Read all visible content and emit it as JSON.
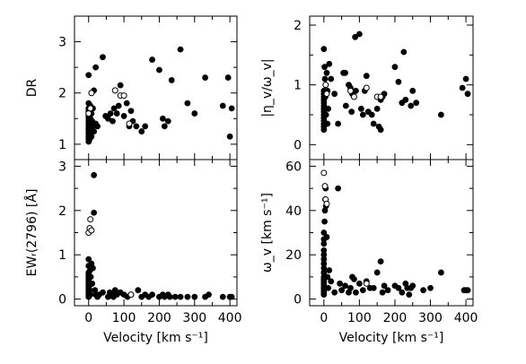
{
  "chart_data": [
    {
      "type": "scatter",
      "panel": "top-left",
      "xlabel": "",
      "ylabel": "DR",
      "xlim": [
        -40,
        420
      ],
      "ylim": [
        0.7,
        3.5
      ],
      "xticks": [
        0,
        100,
        200,
        300,
        400
      ],
      "xticklabels_shown": false,
      "yticks": [
        1,
        2,
        3
      ],
      "yticklabels": [
        "1",
        "2",
        "3"
      ],
      "series": [
        {
          "marker": "filled",
          "x": [
            0,
            0,
            0,
            0,
            0,
            0,
            0,
            0,
            0,
            0,
            0,
            0,
            0,
            0,
            0,
            0,
            3,
            3,
            5,
            5,
            8,
            8,
            10,
            12,
            12,
            15,
            15,
            20,
            20,
            25,
            40,
            48,
            55,
            62,
            68,
            72,
            80,
            85,
            90,
            100,
            108,
            115,
            120,
            125,
            135,
            150,
            160,
            180,
            200,
            210,
            215,
            225,
            235,
            260,
            280,
            300,
            330,
            380,
            395,
            400,
            405
          ],
          "y": [
            1.05,
            1.1,
            1.15,
            1.2,
            1.25,
            1.3,
            1.35,
            1.4,
            1.45,
            1.5,
            1.55,
            1.6,
            1.65,
            1.7,
            1.8,
            2.35,
            1.1,
            1.3,
            1.5,
            1.75,
            1.15,
            1.6,
            1.45,
            1.35,
            1.7,
            1.25,
            2.05,
            1.4,
            2.5,
            1.35,
            2.7,
            1.55,
            1.5,
            1.6,
            1.45,
            1.7,
            1.6,
            1.75,
            2.15,
            1.55,
            1.8,
            1.35,
            1.65,
            1.45,
            1.35,
            1.25,
            1.35,
            2.65,
            2.45,
            1.5,
            1.35,
            1.45,
            2.25,
            2.85,
            1.8,
            1.6,
            2.3,
            1.75,
            2.3,
            1.15,
            1.7
          ]
        },
        {
          "marker": "open",
          "x": [
            0,
            5,
            8,
            75,
            90,
            100,
            115
          ],
          "y": [
            1.6,
            1.7,
            2.0,
            2.05,
            1.95,
            1.95,
            1.4
          ]
        }
      ]
    },
    {
      "type": "scatter",
      "panel": "top-right",
      "xlabel": "",
      "ylabel": "|η_v/ω_v|",
      "xlim": [
        -40,
        420
      ],
      "ylim": [
        -0.25,
        2.15
      ],
      "xticks": [
        0,
        100,
        200,
        300,
        400
      ],
      "xticklabels_shown": false,
      "yticks": [
        0,
        1,
        2
      ],
      "yticklabels": [
        "0",
        "1",
        "2"
      ],
      "series": [
        {
          "marker": "filled",
          "x": [
            0,
            0,
            0,
            0,
            0,
            0,
            0,
            0,
            0,
            0,
            0,
            0,
            0,
            0,
            0,
            2,
            3,
            4,
            5,
            6,
            8,
            10,
            10,
            12,
            15,
            20,
            30,
            40,
            55,
            60,
            62,
            70,
            75,
            78,
            80,
            88,
            90,
            100,
            105,
            110,
            115,
            120,
            125,
            135,
            140,
            150,
            155,
            160,
            160,
            165,
            170,
            200,
            210,
            220,
            225,
            230,
            245,
            250,
            260,
            330,
            390,
            400,
            405
          ],
          "y": [
            0.25,
            0.3,
            0.35,
            0.4,
            0.45,
            0.5,
            0.55,
            0.6,
            0.65,
            0.7,
            0.75,
            0.8,
            0.85,
            0.9,
            1.6,
            1.3,
            1.1,
            0.8,
            1.0,
            0.5,
            1.2,
            0.9,
            0.35,
            0.6,
            1.35,
            1.1,
            0.85,
            0.35,
            1.2,
            1.2,
            0.65,
            1.0,
            0.95,
            0.55,
            0.85,
            1.8,
            0.9,
            1.85,
            0.6,
            0.5,
            0.9,
            1.15,
            0.55,
            0.5,
            0.35,
            0.6,
            0.3,
            0.25,
            0.75,
            0.8,
            0.85,
            1.3,
            1.05,
            0.7,
            1.55,
            0.75,
            0.65,
            0.9,
            0.7,
            0.5,
            0.95,
            1.1,
            0.85
          ]
        },
        {
          "marker": "open",
          "x": [
            5,
            8,
            75,
            85,
            120,
            150,
            160
          ],
          "y": [
            1.0,
            0.85,
            0.9,
            0.8,
            0.95,
            0.8,
            0.8
          ]
        }
      ]
    },
    {
      "type": "scatter",
      "panel": "bottom-left",
      "xlabel": "Velocity [km s⁻¹]",
      "ylabel": "EWᵣ(2796) [Å]",
      "xlim": [
        -40,
        420
      ],
      "ylim": [
        -0.15,
        3.15
      ],
      "xticks": [
        0,
        100,
        200,
        300,
        400
      ],
      "xticklabels": [
        "0",
        "100",
        "200",
        "300",
        "400"
      ],
      "yticks": [
        0,
        1,
        2,
        3
      ],
      "yticklabels": [
        "0",
        "1",
        "2",
        "3"
      ],
      "series": [
        {
          "marker": "filled",
          "x": [
            0,
            0,
            0,
            0,
            0,
            0,
            0,
            0,
            0,
            0,
            0,
            0,
            0,
            0,
            2,
            3,
            4,
            5,
            6,
            8,
            10,
            12,
            15,
            15,
            18,
            20,
            25,
            30,
            40,
            55,
            60,
            65,
            70,
            75,
            80,
            90,
            100,
            110,
            120,
            140,
            150,
            160,
            170,
            180,
            200,
            210,
            215,
            225,
            230,
            245,
            260,
            280,
            300,
            330,
            340,
            380,
            400,
            405
          ],
          "y": [
            0.05,
            0.1,
            0.15,
            0.2,
            0.25,
            0.3,
            0.35,
            0.4,
            0.5,
            0.6,
            0.75,
            0.9,
            0.45,
            0.55,
            0.3,
            0.2,
            0.65,
            0.1,
            0.5,
            0.8,
            0.35,
            0.7,
            1.95,
            2.8,
            0.2,
            0.1,
            0.05,
            0.1,
            0.15,
            0.05,
            0.15,
            0.1,
            0.05,
            0.2,
            0.1,
            0.15,
            0.1,
            0.05,
            0.1,
            0.2,
            0.05,
            0.1,
            0.05,
            0.1,
            0.05,
            0.1,
            0.05,
            0.1,
            0.05,
            0.05,
            0.05,
            0.05,
            0.05,
            0.05,
            0.1,
            0.05,
            0.05,
            0.05
          ]
        },
        {
          "marker": "open",
          "x": [
            0,
            3,
            5,
            8,
            120
          ],
          "y": [
            1.5,
            1.6,
            1.8,
            1.55,
            0.1
          ]
        }
      ]
    },
    {
      "type": "scatter",
      "panel": "bottom-right",
      "xlabel": "Velocity [km s⁻¹]",
      "ylabel": "ω_v [km s⁻¹]",
      "xlim": [
        -40,
        420
      ],
      "ylim": [
        -3,
        63
      ],
      "xticks": [
        0,
        100,
        200,
        300,
        400
      ],
      "xticklabels": [
        "0",
        "100",
        "200",
        "300",
        "400"
      ],
      "yticks": [
        0,
        20,
        40,
        60
      ],
      "yticklabels": [
        "0",
        "20",
        "40",
        "60"
      ],
      "series": [
        {
          "marker": "filled",
          "x": [
            0,
            0,
            0,
            0,
            0,
            0,
            0,
            0,
            0,
            0,
            0,
            0,
            0,
            0,
            0,
            0,
            0,
            0,
            2,
            3,
            4,
            5,
            6,
            8,
            10,
            12,
            15,
            20,
            30,
            40,
            45,
            50,
            60,
            70,
            75,
            80,
            85,
            90,
            100,
            110,
            120,
            130,
            140,
            150,
            160,
            165,
            170,
            180,
            200,
            210,
            220,
            230,
            235,
            240,
            245,
            250,
            280,
            300,
            330,
            395,
            400,
            405
          ],
          "y": [
            2,
            3,
            4,
            5,
            6,
            7,
            8,
            9,
            10,
            12,
            14,
            16,
            18,
            20,
            22,
            25,
            27,
            30,
            35,
            40,
            45,
            50,
            42,
            28,
            10,
            5,
            13,
            8,
            3,
            50,
            7,
            4,
            6,
            3,
            5,
            10,
            9,
            3,
            7,
            4,
            8,
            5,
            5,
            12,
            17,
            3,
            6,
            4,
            6,
            5,
            3,
            7,
            5,
            2,
            5,
            6,
            4,
            5,
            12,
            4,
            4,
            4
          ]
        },
        {
          "marker": "open",
          "x": [
            0,
            3,
            5,
            8,
            120
          ],
          "y": [
            57,
            51,
            45,
            43,
            7
          ]
        }
      ]
    }
  ]
}
